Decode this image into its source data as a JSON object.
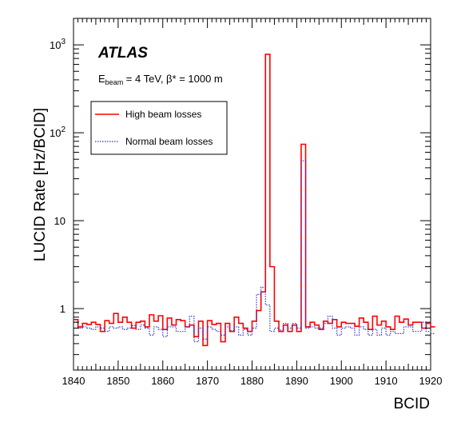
{
  "chart_data": {
    "type": "line",
    "step": true,
    "xlabel": "BCID",
    "ylabel": "LUCID Rate [Hz/BCID]",
    "xlim": [
      1840,
      1920
    ],
    "ylim": [
      0.2,
      2000
    ],
    "yscale": "log",
    "legend": "left",
    "grid": false,
    "x_tick_labels": [
      "1840",
      "1850",
      "1860",
      "1870",
      "1880",
      "1890",
      "1900",
      "1910",
      "1920"
    ],
    "y_tick_labels": [
      {
        "base": "1",
        "exp": ""
      },
      {
        "base": "10",
        "exp": ""
      },
      {
        "base": "10",
        "exp": "2"
      },
      {
        "base": "10",
        "exp": "3"
      }
    ],
    "annotations": {
      "experiment": "ATLAS",
      "info_E": "E",
      "info_sub": "beam",
      "info_rest": " = 4 TeV, β* = 1000 m"
    },
    "x_start": 1840,
    "series": [
      {
        "name": "High beam losses",
        "color": "#ff0000",
        "style": "solid",
        "values": [
          0.75,
          0.62,
          0.68,
          0.66,
          0.7,
          0.66,
          0.55,
          0.73,
          0.68,
          0.88,
          0.7,
          0.8,
          0.7,
          0.6,
          0.7,
          0.72,
          0.62,
          0.85,
          0.72,
          0.83,
          0.58,
          0.78,
          0.65,
          0.75,
          0.73,
          0.62,
          0.65,
          0.48,
          0.72,
          0.38,
          0.73,
          0.66,
          0.68,
          0.42,
          0.68,
          0.55,
          0.8,
          0.68,
          0.6,
          0.55,
          0.72,
          0.95,
          1.55,
          780,
          3.0,
          0.72,
          0.55,
          0.65,
          0.55,
          0.65,
          0.55,
          74,
          0.62,
          0.7,
          0.65,
          0.58,
          0.72,
          0.68,
          0.75,
          0.62,
          0.7,
          0.68,
          0.68,
          0.63,
          0.78,
          0.7,
          0.58,
          0.82,
          0.65,
          0.72,
          0.62,
          0.58,
          0.82,
          0.7,
          0.76,
          0.65,
          0.7,
          0.7,
          0.6,
          0.68,
          0.62
        ]
      },
      {
        "name": "Normal beam losses",
        "color": "#3333cc",
        "style": "dotted",
        "values": [
          0.7,
          0.6,
          0.62,
          0.6,
          0.58,
          0.62,
          0.6,
          0.55,
          0.62,
          0.6,
          0.62,
          0.58,
          0.6,
          0.64,
          0.58,
          0.65,
          0.6,
          0.5,
          0.62,
          0.58,
          0.48,
          0.62,
          0.62,
          0.55,
          0.55,
          0.62,
          0.82,
          0.42,
          0.6,
          0.45,
          0.62,
          0.58,
          0.55,
          0.5,
          0.62,
          0.56,
          0.62,
          0.5,
          0.58,
          0.5,
          0.6,
          1.45,
          1.75,
          1.1,
          0.55,
          0.6,
          0.57,
          0.68,
          0.6,
          0.68,
          0.6,
          48,
          0.6,
          0.62,
          0.6,
          0.6,
          0.68,
          0.82,
          0.6,
          0.5,
          0.6,
          0.62,
          0.6,
          0.5,
          0.62,
          0.58,
          0.5,
          0.58,
          0.5,
          0.6,
          0.5,
          0.55,
          0.52,
          0.52,
          0.62,
          0.62,
          0.55,
          0.55,
          0.7,
          0.55,
          0.52
        ]
      }
    ]
  }
}
